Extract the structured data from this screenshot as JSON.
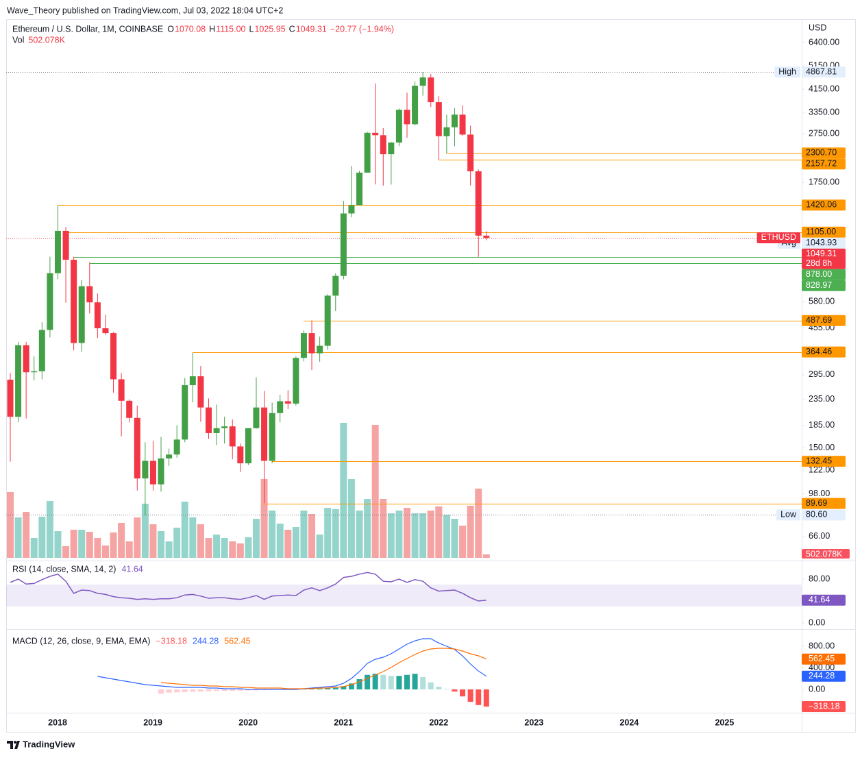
{
  "header": {
    "published": "Wave_Theory published on TradingView.com, Jul 03, 2022 18:04 UTC+2",
    "footer": "TradingView"
  },
  "chart_data": [
    {
      "type": "candlestick",
      "title": "Ethereum / U.S. Dollar, 1M, COINBASE",
      "ohlc_legend": [
        {
          "key": "O",
          "value": "1070.08"
        },
        {
          "key": "H",
          "value": "1115.00"
        },
        {
          "key": "L",
          "value": "1025.95"
        },
        {
          "key": "C",
          "value": "1049.31"
        }
      ],
      "change": "−20.77 (−1.94%)",
      "currency": "USD",
      "log_scale": true,
      "up_color": "#43a047",
      "down_color": "#f23645",
      "legend_color": "#f23645",
      "ylim": [
        53.5,
        7940
      ],
      "yticks": [
        {
          "value": 6400,
          "label": "6400.00"
        },
        {
          "value": 5150,
          "label": "5150.00"
        },
        {
          "value": 4150,
          "label": "4150.00"
        },
        {
          "value": 3350,
          "label": "3350.00"
        },
        {
          "value": 2750,
          "label": "2750.00"
        },
        {
          "value": 1750,
          "label": "1750.00"
        },
        {
          "value": 580,
          "label": "580.00"
        },
        {
          "value": 455,
          "label": "455.00"
        },
        {
          "value": 295,
          "label": "295.00"
        },
        {
          "value": 235,
          "label": "235.00"
        },
        {
          "value": 185,
          "label": "185.00"
        },
        {
          "value": 150,
          "label": "150.00"
        },
        {
          "value": 122,
          "label": "122.00"
        },
        {
          "value": 98,
          "label": "98.00"
        },
        {
          "value": 66,
          "label": "66.00"
        }
      ],
      "xlim": [
        2017.46,
        2025.81
      ],
      "xticks": [
        2018,
        2019,
        2020,
        2021,
        2022,
        2023,
        2024,
        2025
      ],
      "candles": {
        "open": [
          282,
          200,
          388,
          302,
          305,
          447,
          756,
          1118,
          856,
          396,
          670,
          577,
          454,
          434,
          283,
          232,
          198,
          113,
          133,
          107,
          136,
          141,
          162,
          268,
          291,
          218,
          172,
          180,
          183,
          152,
          130,
          180,
          218,
          133,
          207,
          231,
          226,
          345,
          434,
          360,
          386,
          614,
          737,
          1314,
          1418,
          1918,
          2773,
          2712,
          2274,
          2534,
          3433,
          3001,
          4289,
          4631,
          3683,
          2688,
          2919,
          3281,
          2727,
          1941,
          1070.08
        ],
        "high": [
          300,
          400,
          400,
          350,
          480,
          880,
          1420,
          1160,
          880,
          710,
          838,
          626,
          514,
          438,
          300,
          235,
          222,
          158,
          160,
          166,
          149,
          185,
          286,
          362,
          320,
          237,
          224,
          200,
          195,
          156,
          180,
          288,
          254,
          228,
          245,
          256,
          350,
          445,
          488,
          420,
          622,
          755,
          1475,
          2041,
          1950,
          2797,
          4380,
          2898,
          2550,
          3473,
          4020,
          4460,
          4867.81,
          4780,
          3900,
          3280,
          3483,
          3580,
          2960,
          1975,
          1115
        ],
        "low": [
          132,
          190,
          197,
          280,
          283,
          417,
          715,
          575,
          370,
          365,
          520,
          415,
          427,
          250,
          167,
          190,
          101,
          80.6,
          101,
          100,
          127,
          137,
          158,
          229,
          191,
          163,
          154,
          156,
          135,
          120,
          128,
          179,
          90,
          130,
          190,
          215,
          222,
          334,
          308,
          333,
          372,
          532,
          714,
          1270,
          1437,
          1936,
          1720,
          1700,
          1716,
          2449,
          2652,
          2970,
          3910,
          3520,
          2159,
          2300,
          2450,
          2700,
          1703,
          880,
          1025.95
        ],
        "close": [
          200,
          388,
          302,
          305,
          447,
          756,
          1118,
          856,
          396,
          670,
          577,
          454,
          434,
          283,
          232,
          198,
          113,
          133,
          107,
          136,
          141,
          162,
          268,
          291,
          218,
          172,
          180,
          183,
          152,
          130,
          180,
          218,
          133,
          207,
          231,
          226,
          345,
          434,
          360,
          386,
          614,
          737,
          1314,
          1418,
          1918,
          2773,
          2712,
          2274,
          2534,
          3433,
          3001,
          4289,
          4631,
          3683,
          2688,
          2919,
          3281,
          2727,
          1941,
          1070,
          1049.31
        ]
      },
      "levels": [
        {
          "value": 2300.7,
          "label": "2300.70",
          "color": "#ff9800",
          "label_color": "#131722"
        },
        {
          "value": 2157.72,
          "label": "2157.72",
          "color": "#ff9800",
          "label_color": "#131722"
        },
        {
          "value": 1420.06,
          "label": "1420.06",
          "color": "#ff9800",
          "label_color": "#131722"
        },
        {
          "value": 1105,
          "label": "1105.00",
          "color": "#ff9800",
          "label_color": "#131722"
        },
        {
          "value": 878,
          "label": "878.00",
          "color": "#4caf50",
          "label_color": "#ffffff"
        },
        {
          "value": 828.97,
          "label": "828.97",
          "color": "#4caf50",
          "label_color": "#ffffff"
        },
        {
          "value": 487.69,
          "label": "487.69",
          "color": "#ff9800",
          "label_color": "#131722"
        },
        {
          "value": 364.46,
          "label": "364.46",
          "color": "#ff9800",
          "label_color": "#131722"
        },
        {
          "value": 132.45,
          "label": "132.45",
          "color": "#ff9800",
          "label_color": "#131722"
        },
        {
          "value": 89.69,
          "label": "89.69",
          "color": "#ff9800",
          "label_color": "#131722"
        }
      ],
      "markers": {
        "high": {
          "tag": "High",
          "value": 4867.81,
          "label": "4867.81"
        },
        "low": {
          "tag": "Low",
          "value": 80.6,
          "label": "80.60"
        },
        "avg": {
          "tag": "Avg",
          "value": 1043.93,
          "label": "1043.93"
        },
        "last": {
          "tag": "ETHUSD",
          "value": 1049.31,
          "label": "1049.31",
          "countdown": "28d 8h"
        }
      }
    },
    {
      "type": "bar",
      "title": "Vol",
      "values": [
        9600,
        5900,
        6700,
        2900,
        6000,
        8300,
        3900,
        1700,
        4100,
        4100,
        3800,
        2900,
        1800,
        3700,
        5100,
        2400,
        5900,
        7900,
        4900,
        3900,
        2400,
        4400,
        8200,
        5900,
        4900,
        2900,
        3400,
        2900,
        2400,
        2100,
        3000,
        5700,
        11500,
        6900,
        5000,
        4100,
        4500,
        6900,
        6400,
        3400,
        7300,
        7100,
        19700,
        11500,
        6900,
        8600,
        19400,
        8600,
        6500,
        6900,
        7300,
        6500,
        6500,
        6900,
        7500,
        6300,
        5700,
        4700,
        7600,
        10100,
        502.078
      ],
      "last_label": "502.078K",
      "up_color": "#95d4cb",
      "down_color": "#f5a3a3",
      "badge_color": "#f7525f"
    },
    {
      "type": "line",
      "title": "RSI (14, close, SMA, 14, 2)",
      "values": [
        74,
        80,
        71,
        72,
        79,
        85,
        89,
        76,
        54,
        60,
        59,
        54,
        52,
        48,
        46,
        45,
        43,
        44,
        43,
        44,
        44,
        46,
        51,
        52,
        49,
        45,
        46,
        46,
        44,
        43,
        46,
        50,
        43,
        49,
        50,
        51,
        50,
        60,
        64,
        59,
        64,
        71,
        83,
        85,
        89,
        92,
        89,
        76,
        75,
        80,
        74,
        79,
        76,
        64,
        58,
        59,
        60,
        54,
        46,
        40,
        41.64
      ],
      "color": "#7e57c2",
      "band": [
        30,
        70
      ],
      "ylim": [
        -11.25,
        108.75
      ],
      "yticks": [
        {
          "value": 80,
          "label": "80.00"
        },
        {
          "value": 0,
          "label": "0.00"
        }
      ]
    },
    {
      "type": "macd",
      "title": "MACD (12, 26, close, 9, EMA, EMA)",
      "ylim": [
        -432,
        1067
      ],
      "yticks": [
        {
          "value": 800,
          "label": "800.00"
        },
        {
          "value": 400,
          "label": "400.00"
        },
        {
          "value": 0,
          "label": "0.00"
        }
      ],
      "series": [
        {
          "style": "histogram",
          "color": "#ff5252",
          "colors": [
            "#26a69a",
            "#b2dfdb",
            "#ffcdd2",
            "#ff5252"
          ],
          "last_label": "−318.18",
          "values": [
            null,
            null,
            null,
            null,
            null,
            null,
            null,
            null,
            null,
            null,
            null,
            null,
            null,
            null,
            null,
            null,
            null,
            null,
            null,
            -80,
            -60,
            -55,
            -50,
            -45,
            -40,
            -35,
            -30,
            -28,
            -25,
            -22,
            -20,
            -18,
            -15,
            -12,
            -10,
            -8,
            -8,
            5,
            12,
            15,
            25,
            30,
            60,
            110,
            190,
            270,
            290,
            270,
            250,
            250,
            270,
            290,
            230,
            130,
            50,
            10,
            -40,
            -130,
            -230,
            -290,
            -318.18
          ]
        },
        {
          "style": "line",
          "color": "#2962ff",
          "last_label": "244.28",
          "values": [
            null,
            null,
            null,
            null,
            null,
            null,
            null,
            null,
            null,
            null,
            null,
            241,
            216,
            190,
            165,
            140,
            114,
            89,
            76,
            63,
            51,
            38,
            38,
            38,
            38,
            25,
            25,
            13,
            13,
            13,
            0,
            0,
            0,
            0,
            0,
            0,
            0,
            13,
            25,
            38,
            51,
            63,
            114,
            203,
            330,
            483,
            559,
            597,
            660,
            749,
            838,
            900,
            940,
            940,
            860,
            800,
            740,
            620,
            470,
            340,
            244.28
          ]
        },
        {
          "style": "line",
          "color": "#ff6d00",
          "last_label": "562.45",
          "values": [
            null,
            null,
            null,
            null,
            null,
            null,
            null,
            null,
            null,
            null,
            null,
            null,
            null,
            null,
            null,
            null,
            null,
            null,
            null,
            127,
            114,
            102,
            89,
            76,
            76,
            63,
            63,
            51,
            51,
            38,
            38,
            25,
            25,
            25,
            25,
            13,
            13,
            13,
            13,
            25,
            25,
            38,
            51,
            89,
            140,
            203,
            267,
            330,
            406,
            495,
            571,
            648,
            711,
            749,
            762,
            762,
            749,
            711,
            660,
            622,
            562.45
          ]
        }
      ]
    }
  ]
}
